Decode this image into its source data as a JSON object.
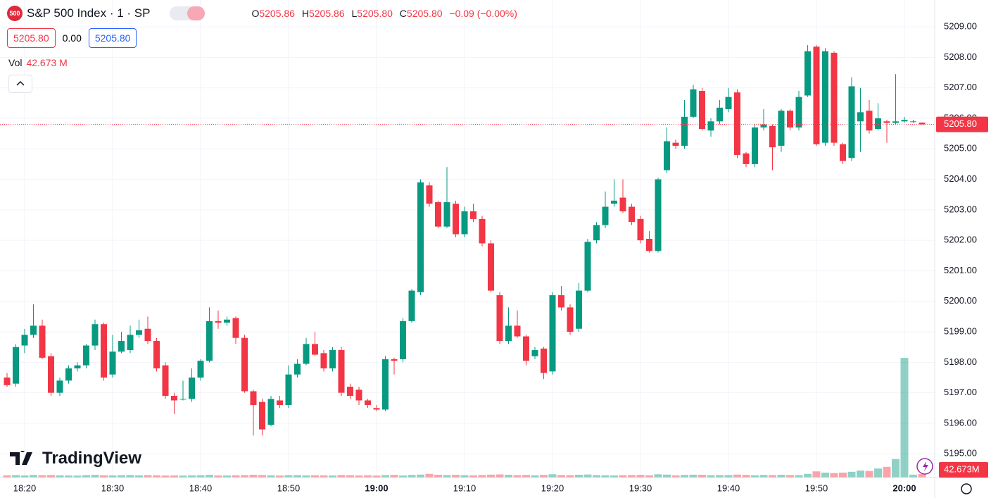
{
  "header": {
    "logo": "500",
    "symbol": "S&P 500 Index · 1 · SP",
    "o_label": "O",
    "open": "5205.86",
    "h_label": "H",
    "high": "5205.86",
    "l_label": "L",
    "low": "5205.80",
    "c_label": "C",
    "close": "5205.80",
    "change": "−0.09 (−0.00%)"
  },
  "order": {
    "sell": "5205.80",
    "spread": "0.00",
    "buy": "5205.80"
  },
  "volume_legend": {
    "label": "Vol",
    "value": "42.673 M"
  },
  "price_tag": "5205.80",
  "volume_tag": "42.673M",
  "brand": "TradingView",
  "chart_data": {
    "type": "candlestick",
    "up_color": "#089981",
    "down_color": "#f23645",
    "grid": true,
    "categories": [
      "18:18",
      "18:19",
      "18:20",
      "18:21",
      "18:22",
      "18:23",
      "18:24",
      "18:25",
      "18:26",
      "18:27",
      "18:28",
      "18:29",
      "18:30",
      "18:31",
      "18:32",
      "18:33",
      "18:34",
      "18:35",
      "18:36",
      "18:37",
      "18:38",
      "18:39",
      "18:40",
      "18:41",
      "18:42",
      "18:43",
      "18:44",
      "18:45",
      "18:46",
      "18:47",
      "18:48",
      "18:49",
      "18:50",
      "18:51",
      "18:52",
      "18:53",
      "18:54",
      "18:55",
      "18:56",
      "18:57",
      "18:58",
      "18:59",
      "19:00",
      "19:01",
      "19:02",
      "19:03",
      "19:04",
      "19:05",
      "19:06",
      "19:07",
      "19:08",
      "19:09",
      "19:10",
      "19:11",
      "19:12",
      "19:13",
      "19:14",
      "19:15",
      "19:16",
      "19:17",
      "19:18",
      "19:19",
      "19:20",
      "19:21",
      "19:22",
      "19:23",
      "19:24",
      "19:25",
      "19:26",
      "19:27",
      "19:28",
      "19:29",
      "19:30",
      "19:31",
      "19:32",
      "19:33",
      "19:34",
      "19:35",
      "19:36",
      "19:37",
      "19:38",
      "19:39",
      "19:40",
      "19:41",
      "19:42",
      "19:43",
      "19:44",
      "19:45",
      "19:46",
      "19:47",
      "19:48",
      "19:49",
      "19:50",
      "19:51",
      "19:52",
      "19:53",
      "19:54",
      "19:55",
      "19:56",
      "19:57",
      "19:58",
      "19:59",
      "20:00",
      "20:01",
      "20:02"
    ],
    "open": [
      5197.5,
      5197.3,
      5198.55,
      5198.9,
      5199.2,
      5198.2,
      5197.0,
      5197.4,
      5197.8,
      5197.9,
      5198.55,
      5199.25,
      5197.6,
      5198.35,
      5198.4,
      5198.9,
      5199.1,
      5198.7,
      5197.9,
      5196.9,
      5196.8,
      5196.8,
      5197.5,
      5198.05,
      5199.35,
      5199.3,
      5199.45,
      5198.8,
      5197.05,
      5196.7,
      5195.95,
      5196.75,
      5196.6,
      5197.6,
      5197.95,
      5198.6,
      5198.3,
      5197.8,
      5198.4,
      5197.2,
      5197.1,
      5196.75,
      5196.5,
      5196.45,
      5198.1,
      5198.1,
      5199.35,
      5200.3,
      5203.8,
      5203.25,
      5202.45,
      5203.2,
      5202.2,
      5202.95,
      5202.7,
      5201.9,
      5200.2,
      5198.7,
      5199.2,
      5198.85,
      5198.2,
      5198.45,
      5197.7,
      5200.2,
      5199.8,
      5199.1,
      5200.35,
      5202.0,
      5202.5,
      5203.2,
      5203.4,
      5203.1,
      5202.7,
      5202.05,
      5201.65,
      5204.3,
      5205.2,
      5205.1,
      5206.05,
      5206.9,
      5205.6,
      5205.9,
      5206.3,
      5206.85,
      5204.85,
      5204.5,
      5205.7,
      5205.75,
      5205.1,
      5206.25,
      5205.7,
      5206.75,
      5208.35,
      5205.2,
      5208.15,
      5205.15,
      5204.7,
      5205.9,
      5206.25,
      5205.65,
      5205.9,
      5205.85,
      5205.9,
      5205.9,
      5205.86
    ],
    "high": [
      5197.65,
      5198.6,
      5199.1,
      5199.9,
      5199.4,
      5198.3,
      5197.5,
      5197.9,
      5198.0,
      5198.6,
      5199.4,
      5199.3,
      5198.9,
      5199.0,
      5199.2,
      5199.4,
      5199.5,
      5198.8,
      5198.0,
      5197.0,
      5197.4,
      5197.8,
      5198.1,
      5199.8,
      5199.7,
      5199.5,
      5199.5,
      5198.9,
      5197.1,
      5196.8,
      5196.9,
      5196.9,
      5197.9,
      5198.1,
      5198.8,
      5199.0,
      5198.4,
      5198.5,
      5198.5,
      5197.3,
      5197.2,
      5196.8,
      5196.6,
      5198.2,
      5198.15,
      5199.45,
      5200.4,
      5204.0,
      5203.9,
      5203.3,
      5204.4,
      5203.3,
      5203.1,
      5203.2,
      5202.8,
      5202.0,
      5200.3,
      5199.8,
      5199.7,
      5198.9,
      5198.5,
      5198.5,
      5200.3,
      5200.5,
      5199.9,
      5200.6,
      5202.05,
      5202.6,
      5203.6,
      5204.0,
      5204.0,
      5203.2,
      5202.8,
      5202.3,
      5204.05,
      5205.7,
      5205.3,
      5206.6,
      5207.1,
      5207.0,
      5206.0,
      5206.6,
      5207.0,
      5206.95,
      5204.9,
      5205.8,
      5206.3,
      5205.8,
      5206.3,
      5206.3,
      5206.9,
      5208.4,
      5208.4,
      5208.3,
      5208.2,
      5205.2,
      5207.35,
      5207.0,
      5206.6,
      5206.5,
      5205.95,
      5207.45,
      5206.05,
      5205.95,
      5205.86
    ],
    "low": [
      5197.2,
      5197.2,
      5198.3,
      5198.8,
      5198.1,
      5196.9,
      5196.9,
      5197.3,
      5197.7,
      5197.8,
      5198.4,
      5197.4,
      5197.5,
      5198.3,
      5198.3,
      5198.8,
      5198.6,
      5197.7,
      5196.8,
      5196.3,
      5196.75,
      5196.7,
      5197.4,
      5198.0,
      5199.1,
      5199.2,
      5198.6,
      5197.0,
      5195.6,
      5195.6,
      5195.9,
      5196.5,
      5196.5,
      5197.5,
      5197.9,
      5198.2,
      5197.7,
      5197.7,
      5196.9,
      5196.8,
      5196.6,
      5196.5,
      5196.4,
      5196.4,
      5197.6,
      5198.0,
      5199.3,
      5200.2,
      5203.1,
      5202.4,
      5202.4,
      5202.1,
      5202.1,
      5202.6,
      5201.8,
      5200.3,
      5198.6,
      5198.6,
      5198.8,
      5197.9,
      5198.1,
      5197.45,
      5197.6,
      5199.7,
      5198.9,
      5199.0,
      5200.3,
      5201.9,
      5202.4,
      5203.1,
      5202.9,
      5202.5,
      5201.9,
      5201.6,
      5201.6,
      5204.2,
      5205.0,
      5205.0,
      5206.0,
      5205.6,
      5205.4,
      5205.8,
      5206.2,
      5204.7,
      5204.4,
      5204.4,
      5205.6,
      5204.3,
      5204.9,
      5205.6,
      5205.6,
      5206.7,
      5205.1,
      5205.1,
      5205.1,
      5204.5,
      5204.6,
      5204.9,
      5205.5,
      5205.6,
      5205.2,
      5205.8,
      5205.85,
      5205.85,
      5205.8
    ],
    "close": [
      5197.25,
      5198.5,
      5198.9,
      5199.2,
      5198.15,
      5197.0,
      5197.4,
      5197.8,
      5197.9,
      5198.55,
      5199.25,
      5197.5,
      5198.35,
      5198.7,
      5198.9,
      5199.05,
      5198.7,
      5197.8,
      5196.9,
      5196.75,
      5196.8,
      5197.5,
      5198.05,
      5199.35,
      5199.3,
      5199.4,
      5198.8,
      5197.05,
      5196.6,
      5195.8,
      5196.8,
      5196.6,
      5197.6,
      5197.95,
      5198.6,
      5198.25,
      5197.8,
      5198.4,
      5197.0,
      5196.9,
      5196.75,
      5196.6,
      5196.45,
      5198.1,
      5198.05,
      5199.35,
      5200.35,
      5203.9,
      5203.2,
      5202.45,
      5203.25,
      5202.2,
      5202.95,
      5202.7,
      5201.9,
      5200.35,
      5198.7,
      5199.2,
      5198.85,
      5198.05,
      5198.4,
      5197.65,
      5200.2,
      5199.8,
      5199.0,
      5200.35,
      5201.95,
      5202.5,
      5203.1,
      5203.3,
      5202.95,
      5202.6,
      5202.0,
      5201.65,
      5204.0,
      5205.25,
      5205.1,
      5206.05,
      5206.95,
      5205.65,
      5205.9,
      5206.35,
      5206.7,
      5204.8,
      5204.5,
      5205.7,
      5205.8,
      5205.05,
      5206.25,
      5205.7,
      5206.7,
      5208.2,
      5205.15,
      5208.2,
      5205.2,
      5204.6,
      5207.05,
      5206.2,
      5205.6,
      5206.0,
      5205.85,
      5205.9,
      5205.95,
      5205.9,
      5205.8
    ],
    "volume": [
      28,
      30,
      26,
      32,
      29,
      31,
      27,
      25,
      24,
      30,
      33,
      28,
      26,
      29,
      31,
      27,
      30,
      28,
      25,
      26,
      24,
      27,
      29,
      33,
      26,
      25,
      28,
      30,
      34,
      31,
      27,
      25,
      29,
      30,
      26,
      28,
      27,
      25,
      31,
      29,
      26,
      28,
      24,
      30,
      33,
      25,
      32,
      36,
      45,
      34,
      30,
      33,
      29,
      27,
      31,
      35,
      38,
      34,
      30,
      32,
      27,
      33,
      40,
      31,
      29,
      34,
      37,
      30,
      28,
      26,
      29,
      31,
      33,
      28,
      40,
      36,
      27,
      32,
      35,
      34,
      29,
      30,
      31,
      36,
      33,
      28,
      32,
      30,
      34,
      31,
      30,
      45,
      75,
      60,
      55,
      60,
      70,
      85,
      80,
      110,
      130,
      225,
      1450,
      35,
      42.673
    ],
    "ylim": [
      5194.22,
      5209.88
    ],
    "yticks": [
      {
        "value": 5195,
        "label": "5195.00"
      },
      {
        "value": 5196,
        "label": "5196.00"
      },
      {
        "value": 5197,
        "label": "5197.00"
      },
      {
        "value": 5198,
        "label": "5198.00"
      },
      {
        "value": 5199,
        "label": "5199.00"
      },
      {
        "value": 5200,
        "label": "5200.00"
      },
      {
        "value": 5201,
        "label": "5201.00"
      },
      {
        "value": 5202,
        "label": "5202.00"
      },
      {
        "value": 5203,
        "label": "5203.00"
      },
      {
        "value": 5204,
        "label": "5204.00"
      },
      {
        "value": 5205,
        "label": "5205.00"
      },
      {
        "value": 5206,
        "label": "5206.00"
      },
      {
        "value": 5207,
        "label": "5207.00"
      },
      {
        "value": 5208,
        "label": "5208.00"
      },
      {
        "value": 5209,
        "label": "5209.00"
      }
    ]
  }
}
